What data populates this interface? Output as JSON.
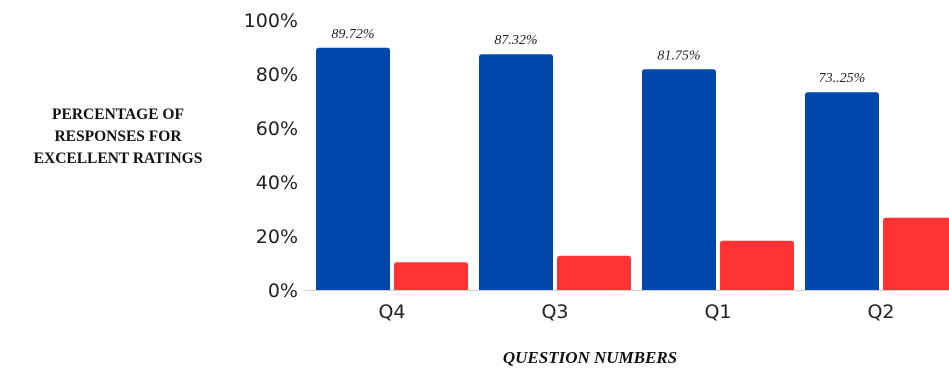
{
  "chart_data": {
    "type": "bar",
    "categories": [
      "Q4",
      "Q3",
      "Q1",
      "Q2"
    ],
    "series": [
      {
        "values": [
          89.72,
          87.32,
          81.75,
          73.25
        ],
        "color": "#0047ab"
      },
      {
        "values": [
          10.28,
          12.68,
          18.25,
          26.75
        ],
        "color": "#ff3333"
      }
    ],
    "data_labels": [
      "89.72%",
      "87.32%",
      "81.75%",
      "73..25%"
    ],
    "ylim": [
      0,
      100
    ],
    "yticks": [
      "0%",
      "20%",
      "40%",
      "60%",
      "80%",
      "100%"
    ],
    "ylabel_lines": [
      "PERCENTAGE OF",
      "RESPONSES FOR",
      "EXCELLENT RATINGS"
    ],
    "xlabel": "QUESTION NUMBERS",
    "grid": false,
    "legend": "none"
  }
}
